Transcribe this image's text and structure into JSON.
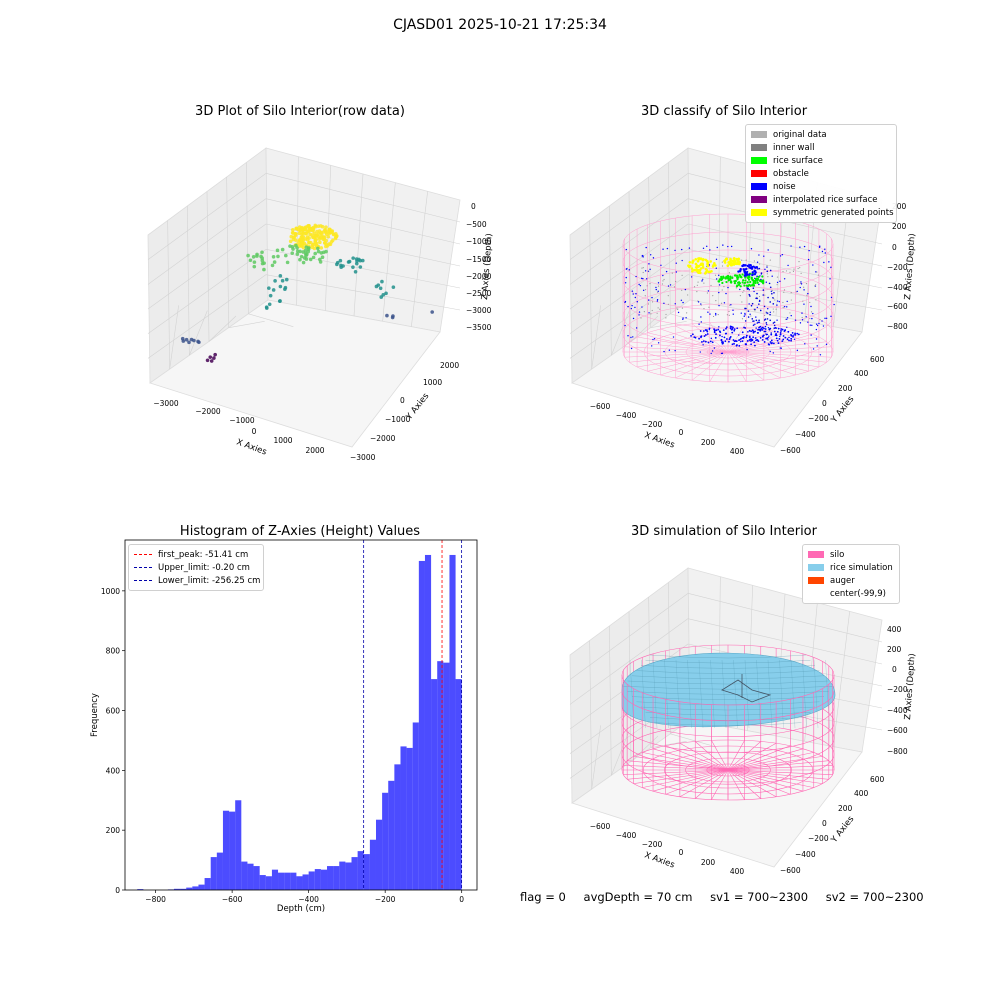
{
  "suptitle": "CJASD01 2025-10-21 17:25:34",
  "footer": {
    "flag": "flag = 0",
    "avg_depth": "avgDepth = 70 cm",
    "sv1": "sv1 = 700~2300",
    "sv2": "sv2 = 700~2300"
  },
  "colors": {
    "hist_bar": "#0000ff",
    "first_peak": "#ff0000",
    "limits": "#0000aa",
    "silo": "#ff69b4",
    "rice_simulation": "#87ceeb",
    "auger": "#ff4500"
  },
  "chart_data": [
    {
      "type": "scatter",
      "title": "3D Plot of Silo Interior(row data)",
      "xlabel": "X Axies",
      "ylabel": "Y Axies",
      "zlabel": "Z Axies (Depth)",
      "x_ticks": [
        "−3000",
        "−2000",
        "−1000",
        "0",
        "1000",
        "2000"
      ],
      "y_ticks": [
        "−3000",
        "−2000",
        "−1000",
        "0",
        "1000",
        "2000"
      ],
      "z_ticks": [
        "0",
        "−500",
        "−1000",
        "−1500",
        "−2000",
        "−2500",
        "−3000",
        "−3500"
      ],
      "colormap": "viridis"
    },
    {
      "type": "scatter",
      "title": "3D classify of Silo Interior",
      "xlabel": "X Axies",
      "ylabel": "Y Axies",
      "zlabel": "Z Axies (Depth)",
      "x_ticks": [
        "−600",
        "−400",
        "−200",
        "0",
        "200",
        "400"
      ],
      "y_ticks": [
        "−600",
        "−400",
        "−200",
        "0",
        "200",
        "400",
        "600"
      ],
      "z_ticks": [
        "200",
        "0",
        "−200",
        "−400",
        "−600",
        "−800"
      ],
      "legend": [
        {
          "name": "original data",
          "color": "#b0b0b0"
        },
        {
          "name": "inner wall",
          "color": "#808080"
        },
        {
          "name": "rice surface",
          "color": "#00ff00"
        },
        {
          "name": "obstacle",
          "color": "#ff0000"
        },
        {
          "name": "noise",
          "color": "#0000ff"
        },
        {
          "name": "interpolated rice surface",
          "color": "#800080"
        },
        {
          "name": "symmetric generated points",
          "color": "#ffff00"
        }
      ]
    },
    {
      "type": "bar",
      "title": "Histogram of Z-Axies (Height) Values",
      "xlabel": "Depth (cm)",
      "ylabel": "Frequency",
      "xlim": [
        -880,
        40
      ],
      "ylim": [
        0,
        1170
      ],
      "x_ticks": [
        -800,
        -600,
        -400,
        -200,
        0
      ],
      "x_tick_labels": [
        "−800",
        "−600",
        "−400",
        "−200",
        "0"
      ],
      "y_ticks": [
        0,
        200,
        400,
        600,
        800,
        1000
      ],
      "bin_width": 16,
      "bin_starts": [
        -864,
        -848,
        -832,
        -816,
        -800,
        -784,
        -768,
        -752,
        -736,
        -720,
        -704,
        -688,
        -672,
        -656,
        -640,
        -624,
        -608,
        -592,
        -576,
        -560,
        -544,
        -528,
        -512,
        -496,
        -480,
        -464,
        -448,
        -432,
        -416,
        -400,
        -384,
        -368,
        -352,
        -336,
        -320,
        -304,
        -288,
        -272,
        -256,
        -240,
        -224,
        -208,
        -192,
        -176,
        -160,
        -144,
        -128,
        -112,
        -96,
        -80,
        -64,
        -48,
        -32,
        -16
      ],
      "values": [
        0,
        3,
        0,
        0,
        0,
        0,
        2,
        4,
        4,
        8,
        12,
        18,
        40,
        110,
        125,
        265,
        262,
        300,
        95,
        88,
        80,
        50,
        46,
        68,
        58,
        58,
        58,
        46,
        52,
        62,
        70,
        68,
        80,
        80,
        95,
        92,
        110,
        130,
        120,
        168,
        235,
        325,
        365,
        420,
        480,
        475,
        560,
        1100,
        1120,
        705,
        765,
        760,
        1120,
        705
      ],
      "lines": [
        {
          "name": "first_peak: -51.41 cm",
          "x": -51.41,
          "color": "#ff0000"
        },
        {
          "name": "Upper_limit: -0.20 cm",
          "x": -0.2,
          "color": "#0000aa"
        },
        {
          "name": "Lower_limit: -256.25 cm",
          "x": -256.25,
          "color": "#0000aa"
        }
      ]
    },
    {
      "type": "scatter",
      "title": "3D simulation of Silo Interior",
      "xlabel": "X Axies",
      "ylabel": "Y Axies",
      "zlabel": "Z Axies (Depth)",
      "x_ticks": [
        "−600",
        "−400",
        "−200",
        "0",
        "200",
        "400"
      ],
      "y_ticks": [
        "−600",
        "−400",
        "−200",
        "0",
        "200",
        "400",
        "600"
      ],
      "z_ticks": [
        "400",
        "200",
        "0",
        "−200",
        "−400",
        "−600",
        "−800"
      ],
      "legend": [
        {
          "name": "silo",
          "color": "#ff69b4"
        },
        {
          "name": "rice simulation",
          "color": "#87ceeb"
        },
        {
          "name": "auger",
          "color": "#ff4500"
        },
        {
          "name": "center(-99,9)",
          "color": ""
        }
      ]
    }
  ]
}
